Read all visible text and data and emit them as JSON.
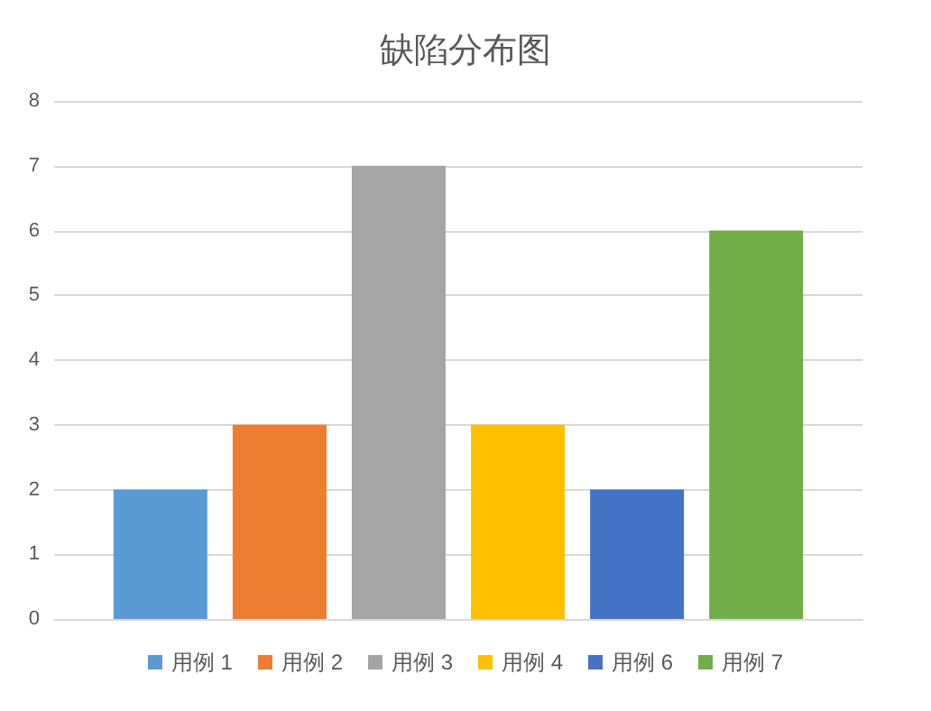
{
  "chart_data": {
    "type": "bar",
    "title": "缺陷分布图",
    "categories": [
      null
    ],
    "series": [
      {
        "name": "用例 1",
        "color": "#5b9bd5",
        "values": [
          2
        ]
      },
      {
        "name": "用例 2",
        "color": "#ed7d31",
        "values": [
          3
        ]
      },
      {
        "name": "用例 3",
        "color": "#a5a5a5",
        "values": [
          7
        ]
      },
      {
        "name": "用例 4",
        "color": "#ffc000",
        "values": [
          3
        ]
      },
      {
        "name": "用例 6",
        "color": "#4472c4",
        "values": [
          2
        ]
      },
      {
        "name": "用例 7",
        "color": "#70ad47",
        "values": [
          6
        ]
      }
    ],
    "ylim": [
      0,
      8
    ],
    "yticks": [
      0,
      1,
      2,
      3,
      4,
      5,
      6,
      7,
      8
    ],
    "grid": "y",
    "legend": "bottom"
  }
}
